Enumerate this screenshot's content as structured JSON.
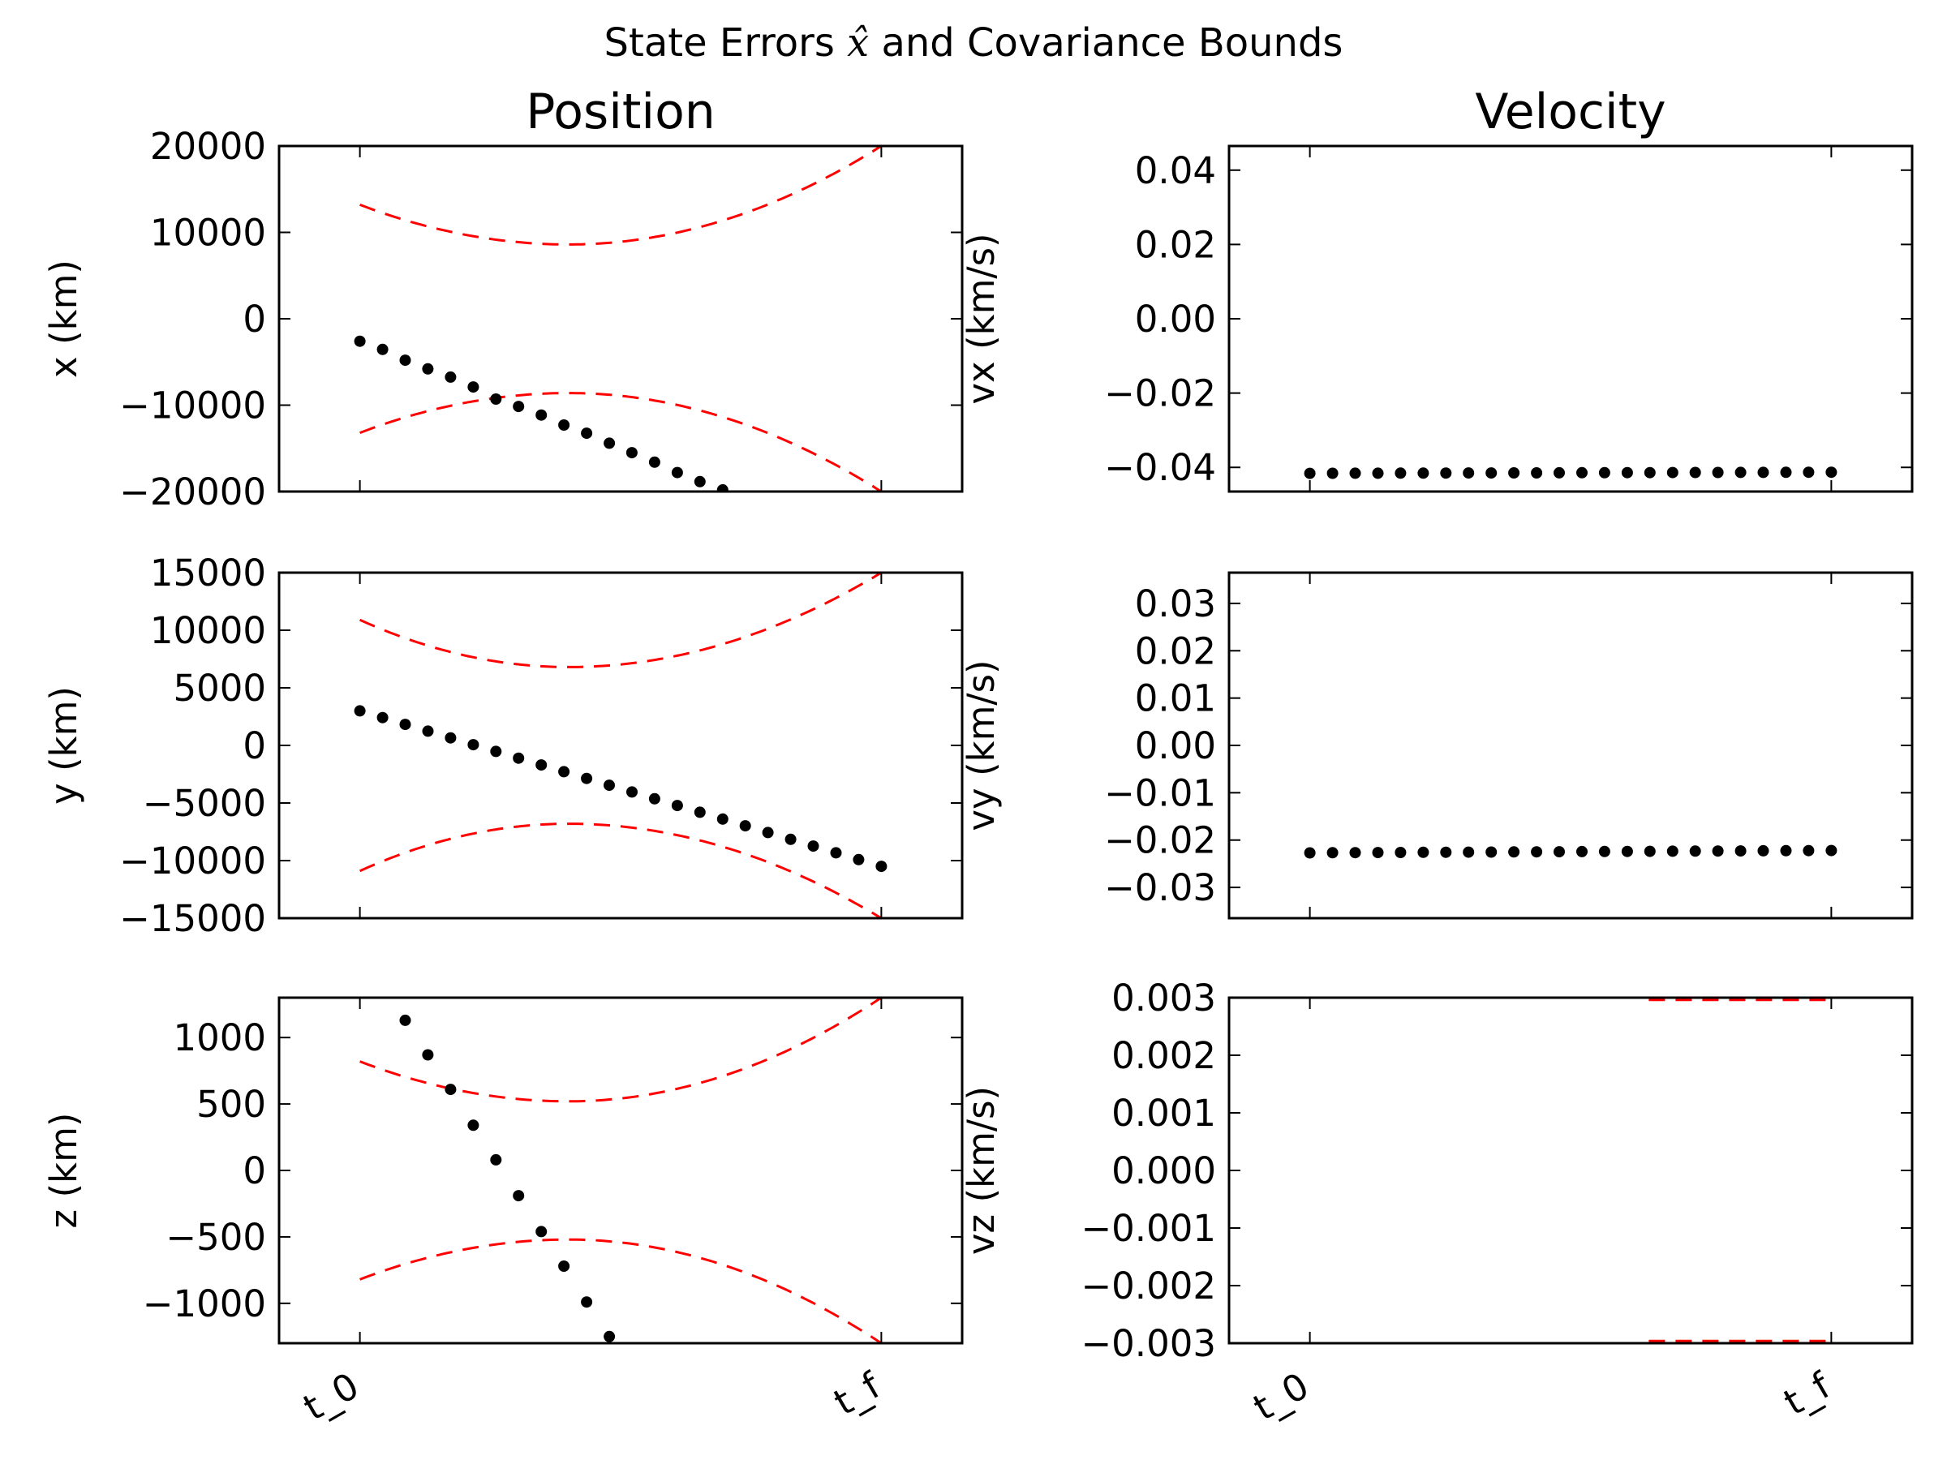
{
  "suptitle": {
    "before": "State Errors ",
    "math": "x̂",
    "after": " and Covariance Bounds"
  },
  "colors": {
    "points": "#000000",
    "bounds": "#ff0000",
    "axes": "#000000",
    "background": "#ffffff"
  },
  "chart_data": [
    {
      "id": "x",
      "type": "scatter",
      "column_title": "Position",
      "ylabel": "x (km)",
      "xlim": [
        -0.155,
        1.155
      ],
      "ylim": [
        -20000,
        20000
      ],
      "yticks": [
        20000,
        10000,
        0,
        -10000,
        -20000
      ],
      "yticklabels": [
        "20000",
        "10000",
        "0",
        "−10000",
        "−20000"
      ],
      "xticks": [
        0,
        1
      ],
      "xticklabels": [
        "t_0",
        "t_f"
      ],
      "show_xticklabels": false,
      "points": [
        {
          "x": 0.0,
          "y": -2600
        },
        {
          "x": 0.0435,
          "y": -3550
        },
        {
          "x": 0.087,
          "y": -4800
        },
        {
          "x": 0.1304,
          "y": -5800
        },
        {
          "x": 0.1739,
          "y": -6750
        },
        {
          "x": 0.2174,
          "y": -7900
        },
        {
          "x": 0.2609,
          "y": -9300
        },
        {
          "x": 0.3043,
          "y": -10150
        },
        {
          "x": 0.3478,
          "y": -11150
        },
        {
          "x": 0.3913,
          "y": -12300
        },
        {
          "x": 0.4348,
          "y": -13250
        },
        {
          "x": 0.4783,
          "y": -14400
        },
        {
          "x": 0.5217,
          "y": -15500
        },
        {
          "x": 0.5652,
          "y": -16600
        },
        {
          "x": 0.6087,
          "y": -17800
        },
        {
          "x": 0.6522,
          "y": -18850
        },
        {
          "x": 0.6957,
          "y": -19800
        }
      ],
      "bound_center": 0.4,
      "bound_min": 8600,
      "bound_start": 13200,
      "bound_end": 20000
    },
    {
      "id": "vx",
      "type": "scatter",
      "column_title": "Velocity",
      "ylabel": "vx (km/s)",
      "xlim": [
        -0.155,
        1.155
      ],
      "ylim": [
        -0.0465,
        0.0465
      ],
      "yticks": [
        0.04,
        0.02,
        0.0,
        -0.02,
        -0.04
      ],
      "yticklabels": [
        "0.04",
        "0.02",
        "0.00",
        "−0.02",
        "−0.04"
      ],
      "xticks": [
        0,
        1
      ],
      "xticklabels": [
        "t_0",
        "t_f"
      ],
      "show_xticklabels": false,
      "points_y_start": -0.0416,
      "points_y_end": -0.0413,
      "points_count": 24,
      "bound_center": 0.4,
      "bound_min": 0.0466,
      "bound_start": 0.0466,
      "bound_end": 0.0466
    },
    {
      "id": "y",
      "type": "scatter",
      "ylabel": "y (km)",
      "xlim": [
        -0.155,
        1.155
      ],
      "ylim": [
        -15000,
        15000
      ],
      "yticks": [
        15000,
        10000,
        5000,
        0,
        -5000,
        -10000,
        -15000
      ],
      "yticklabels": [
        "15000",
        "10000",
        "5000",
        "0",
        "−5000",
        "−10000",
        "−15000"
      ],
      "xticks": [
        0,
        1
      ],
      "xticklabels": [
        "t_0",
        "t_f"
      ],
      "show_xticklabels": false,
      "points_y_start": 3000,
      "points_y_end": -10500,
      "points_count": 24,
      "bound_center": 0.4,
      "bound_min": 6800,
      "bound_start": 10900,
      "bound_end": 15000
    },
    {
      "id": "vy",
      "type": "scatter",
      "ylabel": "vy (km/s)",
      "xlim": [
        -0.155,
        1.155
      ],
      "ylim": [
        -0.0365,
        0.0365
      ],
      "yticks": [
        0.03,
        0.02,
        0.01,
        0.0,
        -0.01,
        -0.02,
        -0.03
      ],
      "yticklabels": [
        "0.03",
        "0.02",
        "0.01",
        "0.00",
        "−0.01",
        "−0.02",
        "−0.03"
      ],
      "xticks": [
        0,
        1
      ],
      "xticklabels": [
        "t_0",
        "t_f"
      ],
      "show_xticklabels": false,
      "points_y_start": -0.0227,
      "points_y_end": -0.0222,
      "points_count": 24,
      "bound_center": 0.4,
      "bound_min": 0.0365,
      "bound_start": 0.0365,
      "bound_end": 0.0365
    },
    {
      "id": "z",
      "type": "scatter",
      "ylabel": "z (km)",
      "xlim": [
        -0.155,
        1.155
      ],
      "ylim": [
        -1300,
        1300
      ],
      "yticks": [
        1000,
        500,
        0,
        -500,
        -1000
      ],
      "yticklabels": [
        "1000",
        "500",
        "0",
        "−500",
        "−1000"
      ],
      "xticks": [
        0,
        1
      ],
      "xticklabels": [
        "t_0",
        "t_f"
      ],
      "show_xticklabels": true,
      "points": [
        {
          "x": 0.087,
          "y": 1130
        },
        {
          "x": 0.1304,
          "y": 870
        },
        {
          "x": 0.1739,
          "y": 610
        },
        {
          "x": 0.2174,
          "y": 340
        },
        {
          "x": 0.2609,
          "y": 80
        },
        {
          "x": 0.3043,
          "y": -190
        },
        {
          "x": 0.3478,
          "y": -460
        },
        {
          "x": 0.3913,
          "y": -720
        },
        {
          "x": 0.4348,
          "y": -990
        },
        {
          "x": 0.4783,
          "y": -1250
        }
      ],
      "bound_center": 0.4,
      "bound_min": 520,
      "bound_start": 820,
      "bound_end": 1300
    },
    {
      "id": "vz",
      "type": "scatter",
      "ylabel": "vz (km/s)",
      "xlim": [
        -0.155,
        1.155
      ],
      "ylim": [
        -0.003,
        0.003
      ],
      "yticks": [
        0.003,
        0.002,
        0.001,
        0.0,
        -0.001,
        -0.002,
        -0.003
      ],
      "yticklabels": [
        "0.003",
        "0.002",
        "0.001",
        "0.000",
        "−0.001",
        "−0.002",
        "−0.003"
      ],
      "xticks": [
        0,
        1
      ],
      "xticklabels": [
        "t_0",
        "t_f"
      ],
      "show_xticklabels": true,
      "points": [],
      "bound_center": 0.4,
      "bound_min": 0.00296,
      "bound_start": 0.00296,
      "bound_end": 0.00296,
      "bound_x_range": [
        0.65,
        1.0
      ]
    }
  ]
}
